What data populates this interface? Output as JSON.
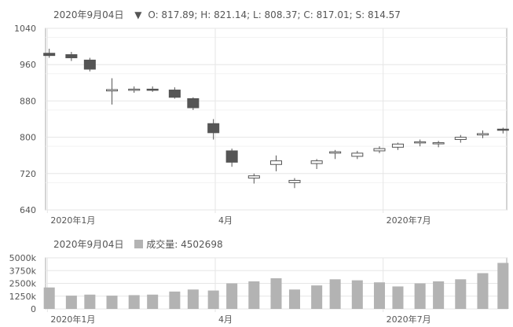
{
  "price_header": {
    "date": "2020年9月04日",
    "marker": "▼",
    "ohlc": "O: 817.89; H: 821.14; L: 808.37; C: 817.01; S: 814.57"
  },
  "volume_header": {
    "date": "2020年9月04日",
    "label": "成交量: 4502698"
  },
  "colors": {
    "candle": "#555555",
    "volume_bar": "#b3b3b3",
    "grid": "#e6e6e6",
    "axis": "#aaaaaa",
    "text": "#555555"
  },
  "chart_data": [
    {
      "type": "candlestick",
      "title": "",
      "ylim": [
        640,
        1040
      ],
      "yticks": [
        "1040",
        "960",
        "880",
        "800",
        "720",
        "640"
      ],
      "xticks": [
        "2020年1月",
        "4月",
        "2020年7月"
      ],
      "grid": true,
      "x_dates": [
        "2020-01-02",
        "2020-01-14",
        "2020-01-24",
        "2020-02-05",
        "2020-02-17",
        "2020-02-27",
        "2020-03-10",
        "2020-03-20",
        "2020-03-31",
        "2020-04-10",
        "2020-04-22",
        "2020-05-04",
        "2020-05-14",
        "2020-05-26",
        "2020-06-05",
        "2020-06-17",
        "2020-06-29",
        "2020-07-09",
        "2020-07-21",
        "2020-07-31",
        "2020-08-12",
        "2020-08-24",
        "2020-09-04"
      ],
      "ohlc": [
        [
          985,
          995,
          975,
          980
        ],
        [
          982,
          988,
          968,
          975
        ],
        [
          970,
          975,
          945,
          950
        ],
        [
          902,
          930,
          872,
          905
        ],
        [
          905,
          912,
          898,
          906
        ],
        [
          906,
          912,
          900,
          904
        ],
        [
          904,
          910,
          885,
          888
        ],
        [
          885,
          888,
          860,
          865
        ],
        [
          830,
          840,
          795,
          810
        ],
        [
          770,
          775,
          735,
          745
        ],
        [
          710,
          720,
          698,
          715
        ],
        [
          740,
          760,
          725,
          748
        ],
        [
          700,
          710,
          688,
          705
        ],
        [
          742,
          752,
          730,
          748
        ],
        [
          765,
          772,
          752,
          768
        ],
        [
          758,
          770,
          752,
          765
        ],
        [
          770,
          780,
          765,
          775
        ],
        [
          778,
          788,
          772,
          785
        ],
        [
          788,
          795,
          780,
          790
        ],
        [
          786,
          792,
          778,
          788
        ],
        [
          795,
          805,
          788,
          800
        ],
        [
          805,
          815,
          798,
          808
        ],
        [
          817.89,
          821.14,
          808.37,
          817.01
        ]
      ]
    },
    {
      "type": "bar",
      "title": "",
      "ylim": [
        0,
        5000000
      ],
      "yticks": [
        "5000k",
        "3750k",
        "2500k",
        "1250k",
        "0"
      ],
      "xticks": [
        "2020年1月",
        "4月",
        "2020年7月"
      ],
      "values": [
        2100000,
        1300000,
        1400000,
        1300000,
        1350000,
        1400000,
        1700000,
        1900000,
        1800000,
        2500000,
        2700000,
        3000000,
        1900000,
        2300000,
        2900000,
        2800000,
        2600000,
        2200000,
        2500000,
        2700000,
        2900000,
        3500000,
        4502698
      ]
    }
  ]
}
